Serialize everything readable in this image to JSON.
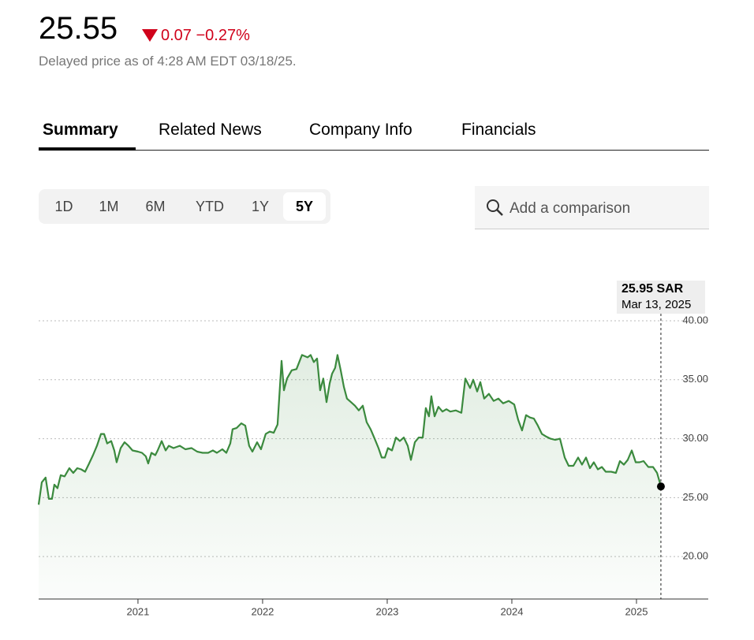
{
  "header": {
    "price": "25.55",
    "change": "0.07",
    "change_percent": "−0.27%",
    "delayed_note": "Delayed price as of 4:28 AM EDT 03/18/25."
  },
  "tabs": [
    "Summary",
    "Related News",
    "Company Info",
    "Financials"
  ],
  "active_tab": 0,
  "ranges": [
    "1D",
    "1M",
    "6M",
    "YTD",
    "1Y",
    "5Y"
  ],
  "active_range": 5,
  "comparison_placeholder": "Add a comparison",
  "chart_data": {
    "type": "line",
    "tooltip": {
      "value": "25.95 SAR",
      "date": "Mar 13, 2025"
    },
    "xlim": [
      2020.203,
      2025.576
    ],
    "ylim": [
      16.4,
      40
    ],
    "xticks": [
      2021,
      2022,
      2023,
      2024,
      2025
    ],
    "yticks": [
      {
        "value": 40,
        "label": "40.00"
      },
      {
        "value": 35,
        "label": "35.00"
      },
      {
        "value": 30,
        "label": "30.00"
      },
      {
        "value": 25,
        "label": "25.00"
      },
      {
        "value": 20,
        "label": "20.00"
      }
    ],
    "grid": true,
    "series": [
      {
        "color": "#3b8a3e",
        "x": [
          2020.203,
          2020.228,
          2020.259,
          2020.285,
          2020.31,
          2020.329,
          2020.354,
          2020.38,
          2020.411,
          2020.449,
          2020.481,
          2020.513,
          2020.544,
          2020.576,
          2020.608,
          2020.639,
          2020.671,
          2020.703,
          2020.728,
          2020.753,
          2020.785,
          2020.81,
          2020.829,
          2020.861,
          2020.892,
          2020.924,
          2020.956,
          2021.0,
          2021.032,
          2021.063,
          2021.082,
          2021.108,
          2021.139,
          2021.158,
          2021.19,
          2021.222,
          2021.247,
          2021.285,
          2021.335,
          2021.38,
          2021.43,
          2021.475,
          2021.519,
          2021.563,
          2021.601,
          2021.633,
          2021.677,
          2021.709,
          2021.741,
          2021.759,
          2021.791,
          2021.829,
          2021.861,
          2021.892,
          2021.918,
          2021.956,
          2021.987,
          2022.025,
          2022.057,
          2022.089,
          2022.12,
          2022.152,
          2022.171,
          2022.196,
          2022.234,
          2022.272,
          2022.316,
          2022.361,
          2022.386,
          2022.411,
          2022.437,
          2022.462,
          2022.487,
          2022.513,
          2022.538,
          2022.557,
          2022.582,
          2022.601,
          2022.627,
          2022.652,
          2022.677,
          2022.709,
          2022.741,
          2022.772,
          2022.804,
          2022.835,
          2022.867,
          2022.899,
          2022.93,
          2022.956,
          2022.981,
          2023.006,
          2023.038,
          2023.07,
          2023.101,
          2023.133,
          2023.165,
          2023.19,
          2023.222,
          2023.253,
          2023.285,
          2023.31,
          2023.335,
          2023.354,
          2023.38,
          2023.411,
          2023.443,
          2023.475,
          2023.506,
          2023.551,
          2023.595,
          2023.627,
          2023.665,
          2023.69,
          2023.722,
          2023.747,
          2023.778,
          2023.816,
          2023.854,
          2023.892,
          2023.93,
          2023.975,
          2024.019,
          2024.051,
          2024.082,
          2024.114,
          2024.146,
          2024.177,
          2024.209,
          2024.241,
          2024.272,
          2024.31,
          2024.348,
          2024.386,
          2024.424,
          2024.456,
          2024.494,
          2024.532,
          2024.563,
          2024.595,
          2024.627,
          2024.658,
          2024.69,
          2024.722,
          2024.753,
          2024.797,
          2024.835,
          2024.867,
          2024.899,
          2024.93,
          2024.962,
          2024.994,
          2025.025,
          2025.057,
          2025.095,
          2025.133,
          2025.165,
          2025.196
        ],
        "values": [
          24.4,
          26.3,
          26.7,
          24.9,
          24.9,
          26.1,
          25.8,
          26.9,
          26.8,
          27.5,
          27.1,
          27.5,
          27.4,
          27.2,
          27.9,
          28.6,
          29.4,
          30.4,
          30.4,
          29.6,
          29.8,
          29.0,
          28.0,
          29.2,
          29.7,
          29.4,
          29.0,
          28.9,
          28.8,
          28.5,
          27.9,
          28.8,
          28.6,
          29.0,
          29.8,
          29.0,
          29.4,
          29.2,
          29.4,
          29.1,
          29.2,
          28.9,
          28.8,
          28.8,
          29.0,
          28.8,
          29.1,
          28.8,
          29.6,
          30.8,
          30.9,
          31.3,
          31.1,
          29.4,
          28.9,
          29.7,
          29.1,
          30.4,
          30.6,
          30.5,
          31.2,
          36.6,
          34.1,
          35.1,
          35.8,
          35.9,
          37.1,
          36.9,
          37.1,
          36.5,
          36.8,
          34.1,
          35.1,
          33.1,
          34.7,
          35.5,
          36.0,
          37.1,
          35.8,
          34.4,
          33.4,
          33.1,
          32.8,
          32.4,
          32.8,
          31.4,
          30.8,
          30.0,
          29.2,
          28.4,
          28.4,
          29.2,
          29.0,
          30.1,
          29.8,
          30.1,
          29.4,
          28.2,
          29.7,
          30.1,
          30.1,
          32.6,
          31.9,
          33.6,
          31.9,
          32.7,
          32.3,
          32.5,
          32.3,
          32.4,
          32.2,
          35.1,
          34.3,
          35.0,
          34.0,
          34.8,
          33.4,
          33.8,
          33.2,
          33.4,
          33.0,
          33.2,
          32.9,
          31.6,
          30.7,
          32.0,
          31.8,
          31.7,
          31.1,
          30.4,
          30.2,
          30.0,
          29.9,
          30.0,
          28.4,
          27.7,
          27.7,
          28.4,
          27.8,
          28.4,
          27.5,
          28.0,
          27.4,
          27.6,
          27.2,
          27.2,
          27.1,
          28.1,
          27.8,
          28.2,
          29.0,
          28.0,
          28.0,
          28.1,
          27.6,
          27.6,
          27.1,
          25.95
        ]
      }
    ]
  }
}
